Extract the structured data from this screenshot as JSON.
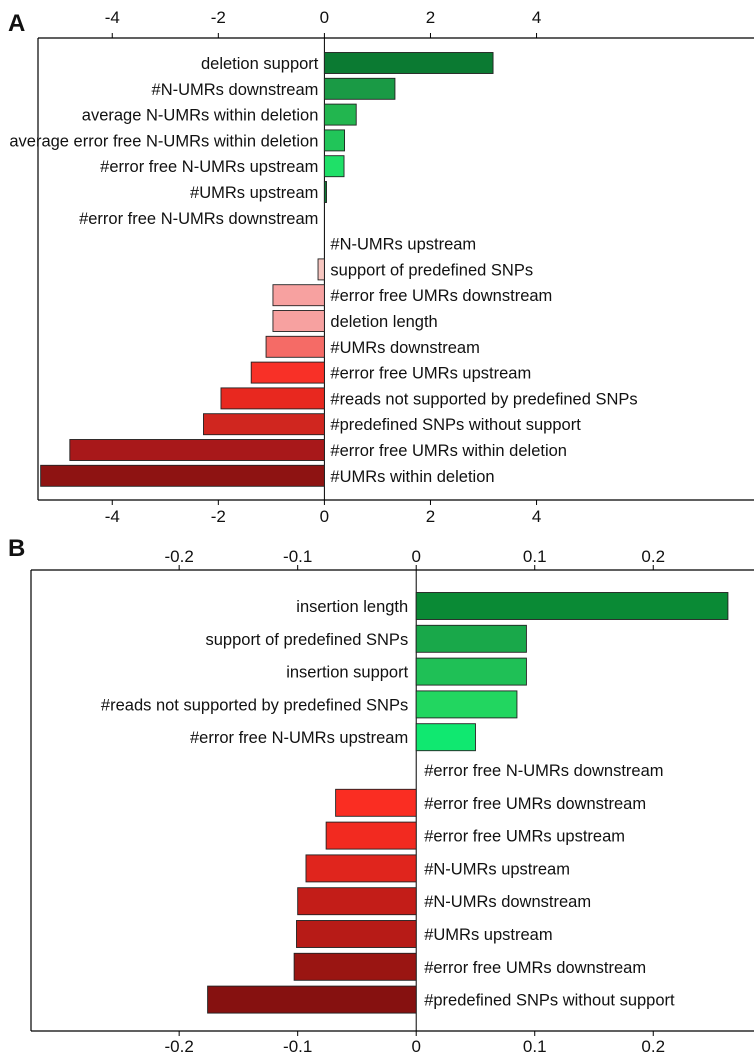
{
  "chart_data": [
    {
      "panel": "A",
      "type": "bar",
      "orientation": "horizontal",
      "xlim": [
        -5.4,
        8.1
      ],
      "xticks": [
        -4,
        -2,
        0,
        2,
        4
      ],
      "xtick_labels": [
        "-4",
        "-2",
        "0",
        "2",
        "4"
      ],
      "grid": false,
      "categories": [
        "deletion support",
        "#N-UMRs downstream",
        "average N-UMRs within deletion",
        "average error free N-UMRs within deletion",
        "#error free N-UMRs upstream",
        "#UMRs upstream",
        "#error free N-UMRs downstream",
        "#N-UMRs upstream",
        "support of predefined SNPs",
        "#error free UMRs downstream",
        "deletion length",
        "#UMRs downstream",
        "#error free UMRs upstream",
        "#reads not supported by predefined SNPs",
        "#predefined SNPs without support",
        "#error free UMRs within deletion",
        "#UMRs within deletion"
      ],
      "values": [
        3.18,
        1.33,
        0.6,
        0.38,
        0.37,
        0.04,
        0.0,
        0.0,
        -0.12,
        -0.97,
        -0.97,
        -1.1,
        -1.38,
        -1.95,
        -2.28,
        -4.8,
        -5.35
      ],
      "colors": [
        "#0b7a32",
        "#1a9a45",
        "#22b64f",
        "#21c559",
        "#1fe068",
        "#0b7a32",
        "#ffffff",
        "#ffffff",
        "#f7c6c0",
        "#f7a1a0",
        "#f7a1a0",
        "#f56b66",
        "#f83027",
        "#e8281f",
        "#d0261f",
        "#a8181a",
        "#8e1312"
      ]
    },
    {
      "panel": "B",
      "type": "bar",
      "orientation": "horizontal",
      "xlim": [
        -0.325,
        0.285
      ],
      "xticks": [
        -0.2,
        -0.1,
        0,
        0.1,
        0.2
      ],
      "xtick_labels": [
        "-0.2",
        "-0.1",
        "0",
        "0.1",
        "0.2"
      ],
      "grid": false,
      "categories": [
        "insertion length",
        "support of predefined SNPs",
        "insertion support",
        "#reads not supported by predefined SNPs",
        "#error free N-UMRs upstream",
        "#error free N-UMRs downstream",
        "#error free UMRs downstream",
        "#error free UMRs upstream",
        "#N-UMRs upstream",
        "#N-UMRs downstream",
        "#UMRs upstream",
        "#error free UMRs downstream",
        "#predefined SNPs without support"
      ],
      "values": [
        0.263,
        0.093,
        0.093,
        0.085,
        0.05,
        0.0,
        -0.068,
        -0.076,
        -0.093,
        -0.1,
        -0.101,
        -0.103,
        -0.176
      ],
      "colors": [
        "#0a8a35",
        "#19a84a",
        "#1fc056",
        "#22d660",
        "#10e870",
        "#ffffff",
        "#fa2d22",
        "#f22a20",
        "#e0251d",
        "#c31d18",
        "#b71b17",
        "#9a1512",
        "#861110"
      ]
    }
  ]
}
